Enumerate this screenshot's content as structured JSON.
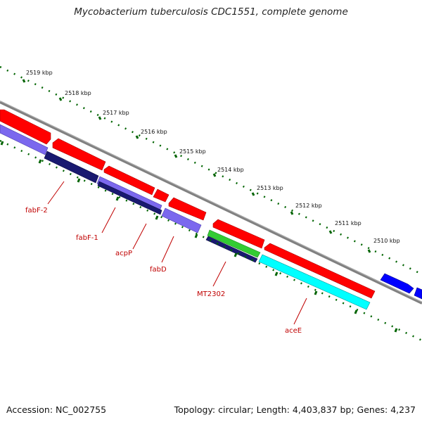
{
  "title": "Mycobacterium tuberculosis CDC1551, complete genome",
  "footer": {
    "accession": "Accession: NC_002755",
    "topology": "Topology: circular; Length: 4,403,837 bp; Genes: 4,237"
  },
  "scale": {
    "ticks": [
      "2519 kbp",
      "2518 kbp",
      "2517 kbp",
      "2516 kbp",
      "2515 kbp",
      "2514 kbp",
      "2513 kbp",
      "2512 kbp",
      "2511 kbp",
      "2510 kbp"
    ]
  },
  "genes": {
    "labels": [
      "fabF-2",
      "fabF-1",
      "acpP",
      "fabD",
      "MT2302",
      "aceE"
    ]
  },
  "colors": {
    "forward_red": "#ff0000",
    "reverse_purple": "#7b68ee",
    "reverse_navy": "#191970",
    "green": "#33cc33",
    "cyan": "#00ffff",
    "blue": "#0000ff",
    "backbone": "#808080",
    "tick_green": "#006400",
    "label_red": "#c00000"
  }
}
